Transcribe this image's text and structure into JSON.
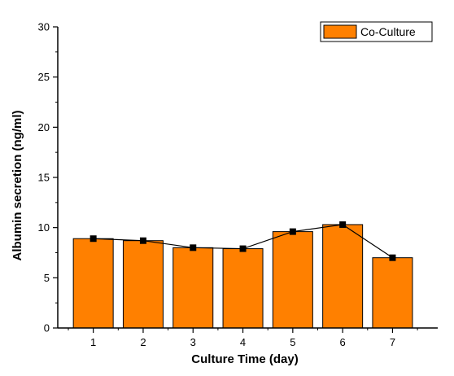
{
  "chart_data": {
    "type": "bar",
    "categories": [
      "1",
      "2",
      "3",
      "4",
      "5",
      "6",
      "7"
    ],
    "series": [
      {
        "name": "Co-Culture",
        "values": [
          8.9,
          8.7,
          8.0,
          7.9,
          9.6,
          10.3,
          7.0
        ],
        "color": "#ff8000",
        "line_color": "#000000",
        "marker_color": "#000000"
      }
    ],
    "title": "",
    "xlabel": "Culture Time (day)",
    "ylabel": "Albumin secretion (ng/ml)",
    "ylim": [
      0,
      30
    ],
    "yticks": [
      0,
      5,
      10,
      15,
      20,
      25,
      30
    ],
    "grid": false,
    "legend_position": "top-right",
    "overlay": "line-with-square-markers"
  }
}
